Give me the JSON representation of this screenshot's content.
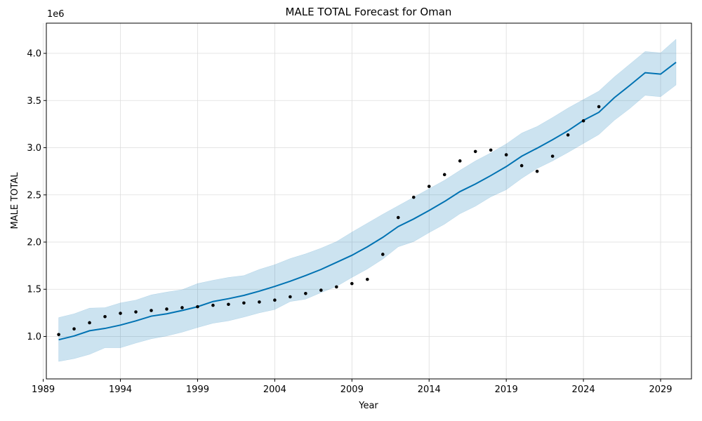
{
  "chart_data": {
    "type": "line",
    "title": "MALE TOTAL Forecast for Oman",
    "xlabel": "Year",
    "ylabel": "MALE TOTAL",
    "y_offset_label": "1e6",
    "xlim": [
      1989.2,
      2031.0
    ],
    "ylim": [
      550000,
      4320000
    ],
    "x_ticks": [
      1989,
      1994,
      1999,
      2004,
      2009,
      2014,
      2019,
      2024,
      2029
    ],
    "y_ticks": [
      1000000,
      1500000,
      2000000,
      2500000,
      3000000,
      3500000,
      4000000
    ],
    "y_tick_labels": [
      "1.0",
      "1.5",
      "2.0",
      "2.5",
      "3.0",
      "3.5",
      "4.0"
    ],
    "grid": true,
    "colors": {
      "forecast": "#0072B2",
      "band": "#0072B2",
      "actual": "#000000"
    },
    "actual": {
      "x": [
        1990,
        1991,
        1992,
        1993,
        1994,
        1995,
        1996,
        1997,
        1998,
        1999,
        2000,
        2001,
        2002,
        2003,
        2004,
        2005,
        2006,
        2007,
        2008,
        2009,
        2010,
        2011,
        2012,
        2013,
        2014,
        2015,
        2016,
        2017,
        2018,
        2019,
        2020,
        2021,
        2022,
        2023,
        2024,
        2025
      ],
      "y": [
        1020000,
        1080000,
        1145000,
        1210000,
        1245000,
        1260000,
        1275000,
        1290000,
        1305000,
        1315000,
        1330000,
        1340000,
        1355000,
        1365000,
        1385000,
        1420000,
        1455000,
        1490000,
        1525000,
        1560000,
        1605000,
        1870000,
        2260000,
        2475000,
        2590000,
        2715000,
        2860000,
        2960000,
        2975000,
        2925000,
        2810000,
        2750000,
        2910000,
        3135000,
        3285000,
        3435000
      ]
    },
    "forecast": {
      "x": [
        1990,
        1991,
        1992,
        1993,
        1994,
        1995,
        1996,
        1997,
        1998,
        1999,
        2000,
        2001,
        2002,
        2003,
        2004,
        2005,
        2006,
        2007,
        2008,
        2009,
        2010,
        2011,
        2012,
        2013,
        2014,
        2015,
        2016,
        2017,
        2018,
        2019,
        2020,
        2021,
        2022,
        2023,
        2024,
        2025,
        2026,
        2027,
        2028,
        2029,
        2030
      ],
      "yhat": [
        965000,
        1005000,
        1060000,
        1085000,
        1120000,
        1165000,
        1215000,
        1240000,
        1275000,
        1315000,
        1370000,
        1400000,
        1435000,
        1480000,
        1530000,
        1585000,
        1645000,
        1710000,
        1785000,
        1860000,
        1950000,
        2050000,
        2165000,
        2245000,
        2335000,
        2430000,
        2535000,
        2615000,
        2705000,
        2800000,
        2910000,
        2995000,
        3085000,
        3180000,
        3290000,
        3375000,
        3530000,
        3660000,
        3795000,
        3780000,
        3905000
      ],
      "lower": [
        735000,
        765000,
        810000,
        880000,
        880000,
        930000,
        975000,
        1005000,
        1045000,
        1095000,
        1140000,
        1165000,
        1205000,
        1250000,
        1285000,
        1370000,
        1395000,
        1465000,
        1530000,
        1625000,
        1715000,
        1820000,
        1950000,
        2005000,
        2100000,
        2190000,
        2300000,
        2380000,
        2480000,
        2555000,
        2675000,
        2780000,
        2860000,
        2950000,
        3045000,
        3140000,
        3290000,
        3415000,
        3555000,
        3540000,
        3665000
      ],
      "upper": [
        1200000,
        1240000,
        1300000,
        1305000,
        1355000,
        1385000,
        1440000,
        1470000,
        1495000,
        1560000,
        1595000,
        1625000,
        1645000,
        1710000,
        1760000,
        1825000,
        1875000,
        1935000,
        2005000,
        2105000,
        2200000,
        2295000,
        2385000,
        2475000,
        2565000,
        2655000,
        2760000,
        2860000,
        2945000,
        3040000,
        3155000,
        3225000,
        3320000,
        3420000,
        3510000,
        3600000,
        3750000,
        3885000,
        4020000,
        4005000,
        4150000
      ]
    }
  }
}
